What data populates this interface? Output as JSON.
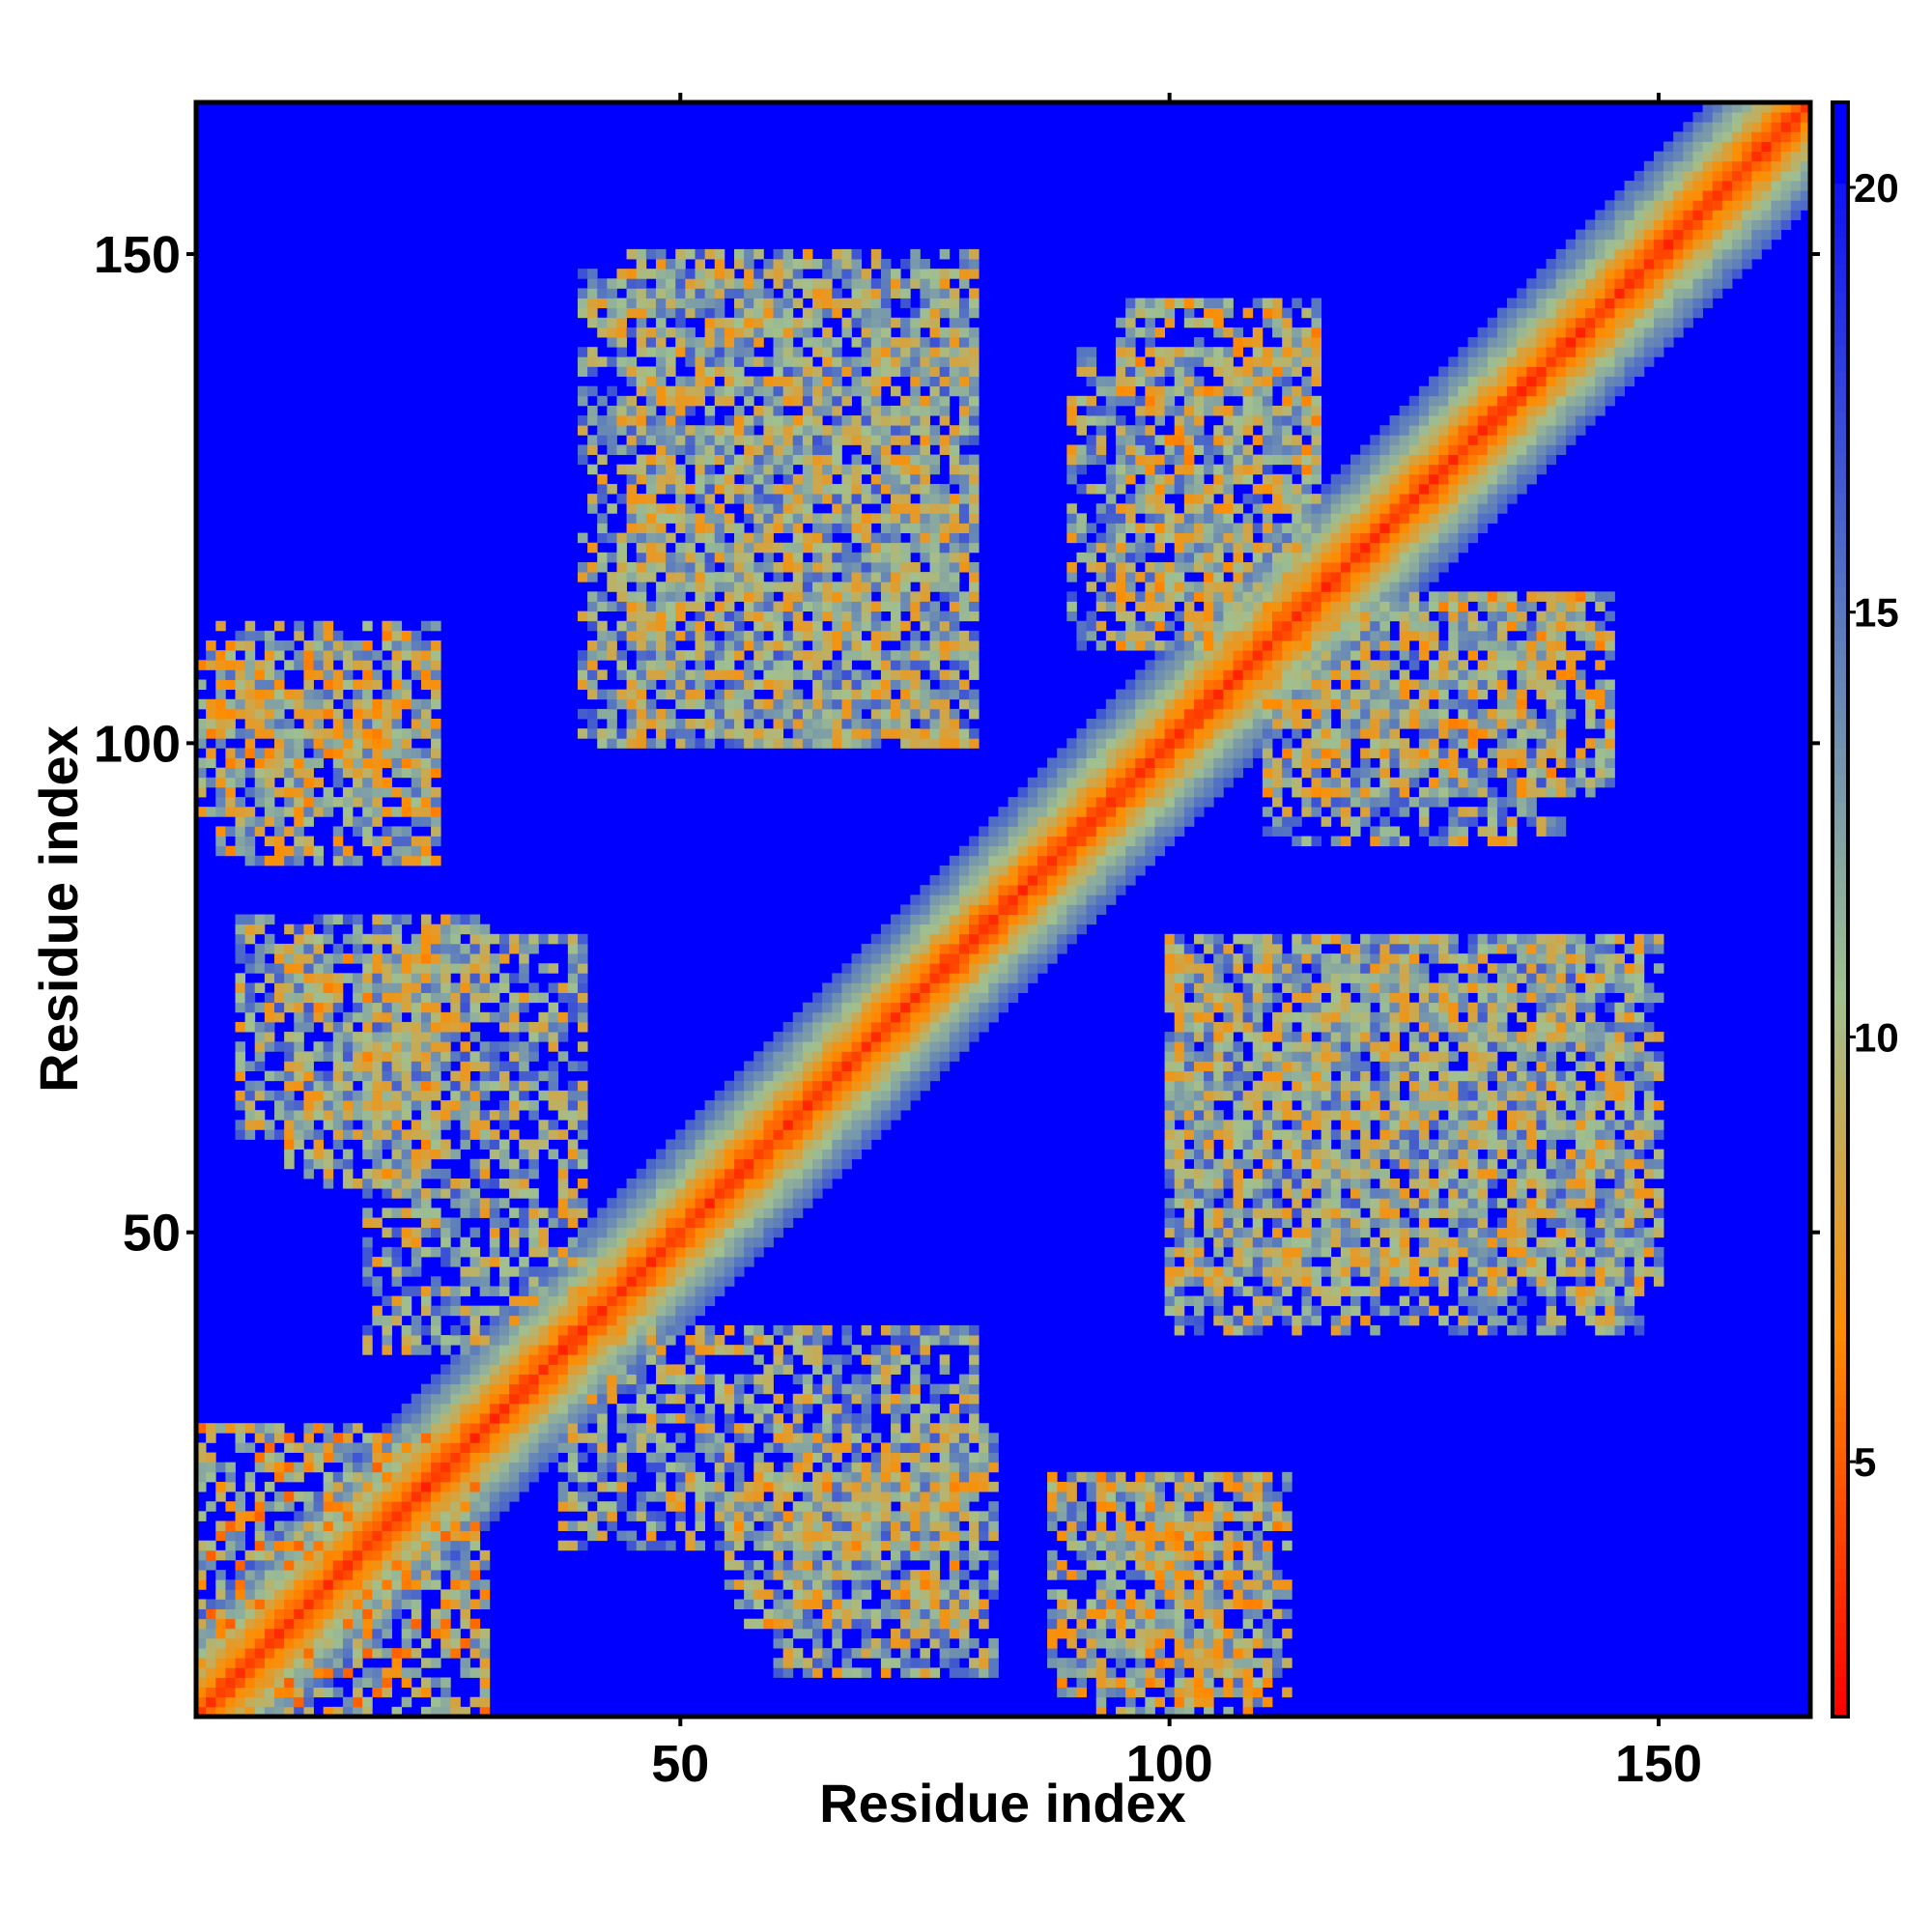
{
  "chart_data": {
    "type": "heatmap",
    "title": "",
    "xlabel": "Residue index",
    "ylabel": "Residue index",
    "n_residues": 165,
    "xlim": [
      1,
      166
    ],
    "ylim": [
      1,
      166
    ],
    "x_ticks": [
      50,
      100,
      150
    ],
    "y_ticks": [
      50,
      100,
      150
    ],
    "colorbar": {
      "range": [
        2,
        21
      ],
      "ticks": [
        5,
        10,
        15,
        20
      ],
      "colors": [
        "#ff0000",
        "#ff8c00",
        "#a0c090",
        "#5878c0",
        "#0000ff"
      ]
    },
    "contact_blocks": [
      {
        "x": [
          1,
          30
        ],
        "y": [
          1,
          30
        ],
        "mean": 10
      },
      {
        "x": [
          1,
          25
        ],
        "y": [
          93,
          110
        ],
        "mean": 11
      },
      {
        "x": [
          5,
          30
        ],
        "y": [
          60,
          82
        ],
        "mean": 12
      },
      {
        "x": [
          38,
          80
        ],
        "y": [
          18,
          40
        ],
        "mean": 12
      },
      {
        "x": [
          55,
          80
        ],
        "y": [
          10,
          25
        ],
        "mean": 11
      },
      {
        "x": [
          88,
          112
        ],
        "y": [
          3,
          25
        ],
        "mean": 11
      },
      {
        "x": [
          100,
          150
        ],
        "y": [
          45,
          80
        ],
        "mean": 12
      },
      {
        "x": [
          110,
          145
        ],
        "y": [
          95,
          115
        ],
        "mean": 11
      },
      {
        "x": [
          40,
          80
        ],
        "y": [
          100,
          148
        ],
        "mean": 12
      },
      {
        "x": [
          90,
          115
        ],
        "y": [
          110,
          140
        ],
        "mean": 12
      }
    ]
  }
}
